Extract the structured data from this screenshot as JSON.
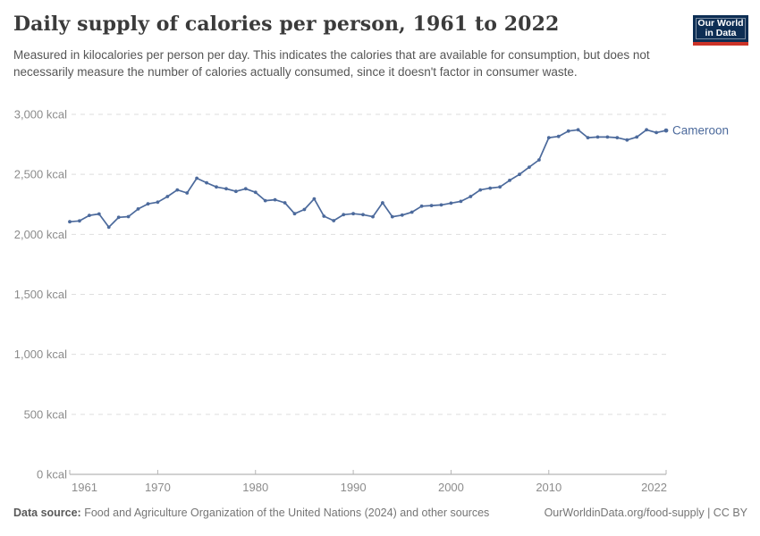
{
  "header": {
    "title": "Daily supply of calories per person, 1961 to 2022",
    "subtitle": "Measured in kilocalories per person per day. This indicates the calories that are available for consumption, but does not necessarily measure the number of calories actually consumed, since it doesn't factor in consumer waste.",
    "logo": {
      "line1": "Our World",
      "line2": "in Data",
      "bg_color": "#0d2e54",
      "accent_color": "#cc3328"
    }
  },
  "chart_data": {
    "type": "line",
    "title": "Daily supply of calories per person, 1961 to 2022",
    "entity_label": "Cameroon",
    "unit": "kcal",
    "line_color": "#4C6A9C",
    "grid": "dashed-horizontal",
    "legend_position": "end-of-line",
    "xlim": [
      1961,
      2022
    ],
    "ylim": [
      0,
      3000
    ],
    "x": [
      1961,
      1962,
      1963,
      1964,
      1965,
      1966,
      1967,
      1968,
      1969,
      1970,
      1971,
      1972,
      1973,
      1974,
      1975,
      1976,
      1977,
      1978,
      1979,
      1980,
      1981,
      1982,
      1983,
      1984,
      1985,
      1986,
      1987,
      1988,
      1989,
      1990,
      1991,
      1992,
      1993,
      1994,
      1995,
      1996,
      1997,
      1998,
      1999,
      2000,
      2001,
      2002,
      2003,
      2004,
      2005,
      2006,
      2007,
      2008,
      2009,
      2010,
      2011,
      2012,
      2013,
      2014,
      2015,
      2016,
      2017,
      2018,
      2019,
      2020,
      2021,
      2022
    ],
    "series": [
      {
        "name": "Cameroon",
        "values": [
          2105,
          2112,
          2158,
          2170,
          2060,
          2142,
          2148,
          2212,
          2254,
          2268,
          2315,
          2370,
          2345,
          2468,
          2430,
          2395,
          2380,
          2358,
          2380,
          2350,
          2281,
          2288,
          2263,
          2172,
          2207,
          2296,
          2151,
          2114,
          2164,
          2172,
          2164,
          2147,
          2263,
          2147,
          2160,
          2185,
          2235,
          2240,
          2245,
          2260,
          2275,
          2315,
          2370,
          2385,
          2395,
          2450,
          2500,
          2560,
          2620,
          2806,
          2816,
          2861,
          2871,
          2806,
          2811,
          2811,
          2806,
          2786,
          2811,
          2871,
          2848,
          2865
        ]
      }
    ],
    "y_ticks": [
      {
        "value": 0,
        "label": "0 kcal"
      },
      {
        "value": 500,
        "label": "500 kcal"
      },
      {
        "value": 1000,
        "label": "1,000 kcal"
      },
      {
        "value": 1500,
        "label": "1,500 kcal"
      },
      {
        "value": 2000,
        "label": "2,000 kcal"
      },
      {
        "value": 2500,
        "label": "2,500 kcal"
      },
      {
        "value": 3000,
        "label": "3,000 kcal"
      }
    ],
    "x_ticks": [
      {
        "value": 1961,
        "label": "1961"
      },
      {
        "value": 1970,
        "label": "1970"
      },
      {
        "value": 1980,
        "label": "1980"
      },
      {
        "value": 1990,
        "label": "1990"
      },
      {
        "value": 2000,
        "label": "2000"
      },
      {
        "value": 2010,
        "label": "2010"
      },
      {
        "value": 2022,
        "label": "2022"
      }
    ]
  },
  "footer": {
    "data_source_label": "Data source:",
    "data_source_text": "Food and Agriculture Organization of the United Nations (2024) and other sources",
    "link": "OurWorldinData.org/food-supply | CC BY"
  }
}
